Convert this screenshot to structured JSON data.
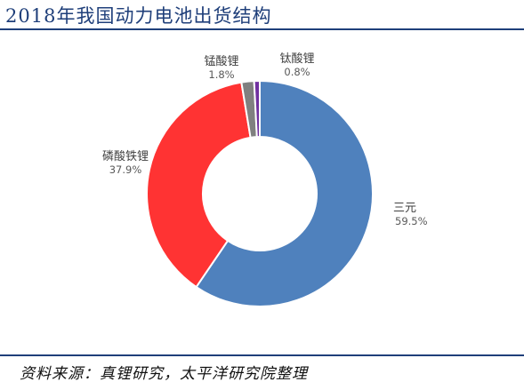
{
  "header": {
    "title": "2018年我国动力电池出货结构"
  },
  "footer": {
    "source": "资料来源：真锂研究，太平洋研究院整理"
  },
  "chart_data": {
    "type": "pie",
    "variant": "donut",
    "title": "2018年我国动力电池出货结构",
    "legend": "none",
    "categories": [
      "三元",
      "磷酸铁锂",
      "锰酸锂",
      "钛酸锂"
    ],
    "values": [
      59.5,
      37.9,
      1.8,
      0.8
    ],
    "value_labels": [
      "59.5%",
      "37.9%",
      "1.8%",
      "0.8%"
    ],
    "unit": "%",
    "colors": [
      "#4f81bd",
      "#ff3333",
      "#808080",
      "#7030a0"
    ]
  }
}
